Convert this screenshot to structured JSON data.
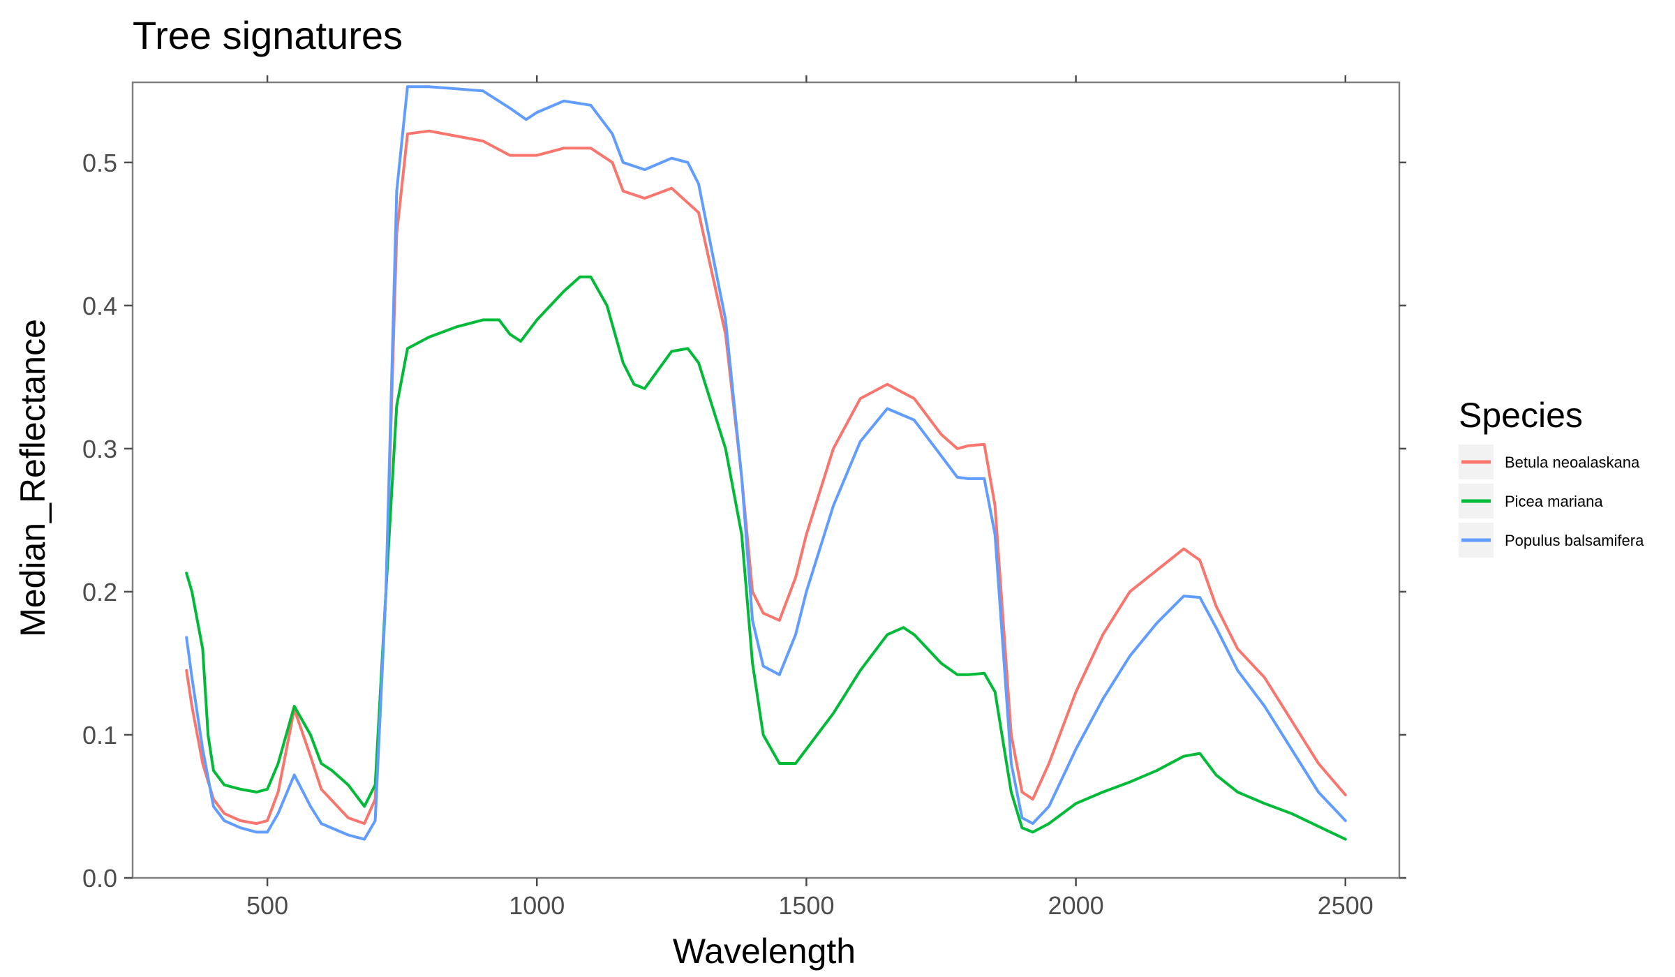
{
  "chart_data": {
    "type": "line",
    "title": "Tree signatures",
    "xlabel": "Wavelength",
    "ylabel": "Median_Reflectance",
    "xlim": [
      250,
      2600
    ],
    "ylim": [
      0.0,
      0.556
    ],
    "x_ticks": [
      500,
      1000,
      1500,
      2000,
      2500
    ],
    "x_tick_labels": [
      "500",
      "1000",
      "1500",
      "2000",
      "2500"
    ],
    "y_ticks": [
      0.0,
      0.1,
      0.2,
      0.3,
      0.4,
      0.5
    ],
    "y_tick_labels": [
      "0.0",
      "0.1",
      "0.2",
      "0.3",
      "0.4",
      "0.5"
    ],
    "grid": false,
    "legend": {
      "title": "Species",
      "position": "right"
    },
    "series": [
      {
        "name": "Betula neoalaskana",
        "color": "#F8766D",
        "x": [
          350,
          360,
          370,
          380,
          400,
          420,
          450,
          480,
          500,
          520,
          550,
          580,
          600,
          650,
          680,
          700,
          720,
          740,
          760,
          800,
          900,
          950,
          1000,
          1050,
          1100,
          1140,
          1160,
          1200,
          1250,
          1300,
          1350,
          1380,
          1400,
          1420,
          1450,
          1480,
          1500,
          1550,
          1600,
          1650,
          1700,
          1750,
          1780,
          1800,
          1830,
          1850,
          1880,
          1900,
          1920,
          1950,
          2000,
          2050,
          2100,
          2150,
          2200,
          2230,
          2260,
          2300,
          2350,
          2400,
          2450,
          2500
        ],
        "y": [
          0.145,
          0.12,
          0.1,
          0.08,
          0.055,
          0.045,
          0.04,
          0.038,
          0.04,
          0.06,
          0.118,
          0.085,
          0.062,
          0.042,
          0.038,
          0.055,
          0.2,
          0.45,
          0.52,
          0.522,
          0.515,
          0.505,
          0.505,
          0.51,
          0.51,
          0.5,
          0.48,
          0.475,
          0.482,
          0.465,
          0.38,
          0.28,
          0.2,
          0.185,
          0.18,
          0.21,
          0.24,
          0.3,
          0.335,
          0.345,
          0.335,
          0.31,
          0.3,
          0.302,
          0.303,
          0.26,
          0.1,
          0.06,
          0.055,
          0.08,
          0.13,
          0.17,
          0.2,
          0.215,
          0.23,
          0.222,
          0.19,
          0.16,
          0.14,
          0.11,
          0.08,
          0.058
        ]
      },
      {
        "name": "Picea mariana",
        "color": "#00BA38",
        "x": [
          350,
          360,
          370,
          380,
          390,
          400,
          420,
          450,
          480,
          500,
          520,
          550,
          580,
          600,
          620,
          650,
          680,
          700,
          720,
          740,
          760,
          800,
          850,
          900,
          930,
          950,
          970,
          1000,
          1050,
          1080,
          1100,
          1130,
          1160,
          1180,
          1200,
          1250,
          1280,
          1300,
          1350,
          1380,
          1400,
          1420,
          1450,
          1480,
          1500,
          1550,
          1600,
          1650,
          1680,
          1700,
          1730,
          1750,
          1780,
          1800,
          1830,
          1850,
          1880,
          1900,
          1920,
          1950,
          2000,
          2050,
          2100,
          2150,
          2200,
          2230,
          2260,
          2300,
          2350,
          2400,
          2450,
          2500
        ],
        "y": [
          0.213,
          0.2,
          0.18,
          0.16,
          0.1,
          0.075,
          0.065,
          0.062,
          0.06,
          0.062,
          0.08,
          0.12,
          0.1,
          0.08,
          0.075,
          0.065,
          0.05,
          0.065,
          0.2,
          0.33,
          0.37,
          0.378,
          0.385,
          0.39,
          0.39,
          0.38,
          0.375,
          0.39,
          0.41,
          0.42,
          0.42,
          0.4,
          0.36,
          0.345,
          0.342,
          0.368,
          0.37,
          0.36,
          0.3,
          0.24,
          0.15,
          0.1,
          0.08,
          0.08,
          0.09,
          0.115,
          0.145,
          0.17,
          0.175,
          0.17,
          0.158,
          0.15,
          0.142,
          0.142,
          0.143,
          0.13,
          0.06,
          0.035,
          0.032,
          0.038,
          0.052,
          0.06,
          0.067,
          0.075,
          0.085,
          0.087,
          0.072,
          0.06,
          0.052,
          0.045,
          0.036,
          0.027
        ]
      },
      {
        "name": "Populus balsamifera",
        "color": "#619CFF",
        "x": [
          350,
          360,
          370,
          380,
          400,
          420,
          450,
          480,
          500,
          520,
          550,
          580,
          600,
          650,
          680,
          700,
          720,
          740,
          760,
          800,
          900,
          950,
          980,
          1000,
          1050,
          1100,
          1140,
          1160,
          1200,
          1250,
          1280,
          1300,
          1350,
          1380,
          1400,
          1420,
          1450,
          1480,
          1500,
          1550,
          1600,
          1650,
          1700,
          1750,
          1780,
          1800,
          1830,
          1850,
          1880,
          1900,
          1920,
          1950,
          2000,
          2050,
          2100,
          2150,
          2200,
          2230,
          2260,
          2300,
          2350,
          2400,
          2450,
          2500
        ],
        "y": [
          0.168,
          0.14,
          0.115,
          0.09,
          0.05,
          0.04,
          0.035,
          0.032,
          0.032,
          0.045,
          0.072,
          0.05,
          0.038,
          0.03,
          0.027,
          0.04,
          0.2,
          0.48,
          0.553,
          0.553,
          0.55,
          0.538,
          0.53,
          0.535,
          0.543,
          0.54,
          0.52,
          0.5,
          0.495,
          0.503,
          0.5,
          0.485,
          0.39,
          0.28,
          0.18,
          0.148,
          0.142,
          0.17,
          0.2,
          0.26,
          0.305,
          0.328,
          0.32,
          0.295,
          0.28,
          0.279,
          0.279,
          0.24,
          0.08,
          0.042,
          0.038,
          0.05,
          0.09,
          0.125,
          0.155,
          0.178,
          0.197,
          0.196,
          0.175,
          0.145,
          0.12,
          0.09,
          0.06,
          0.04
        ]
      }
    ]
  }
}
